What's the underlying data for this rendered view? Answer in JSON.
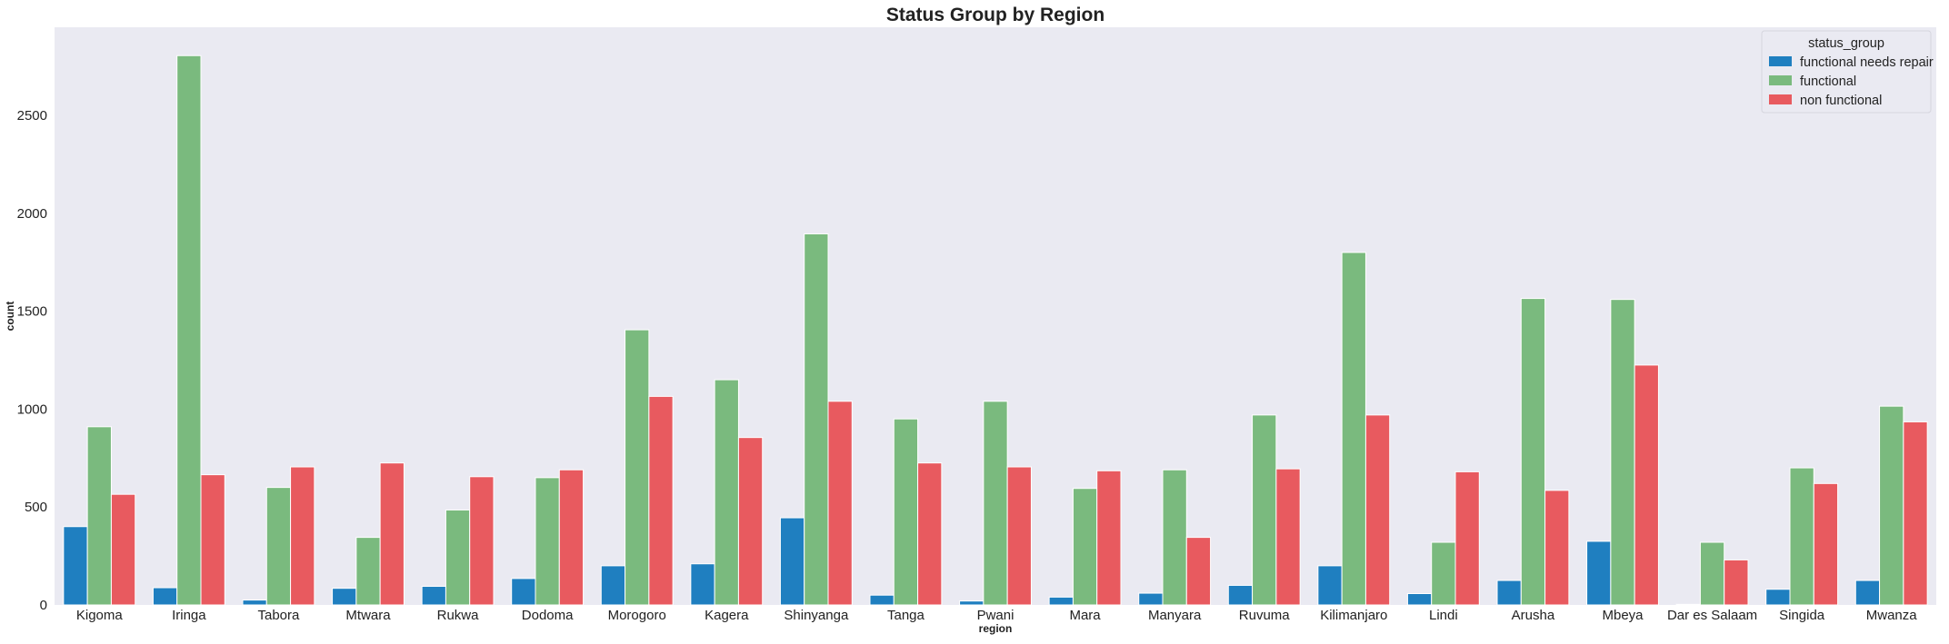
{
  "chart_data": {
    "type": "bar",
    "title": "Status Group by Region",
    "xlabel": "region",
    "ylabel": "count",
    "ylim": [
      0,
      2950
    ],
    "yticks": [
      0,
      500,
      1000,
      1500,
      2000,
      2500
    ],
    "grid": false,
    "legend": {
      "title": "status_group",
      "placement": "top-right"
    },
    "categories": [
      "Kigoma",
      "Iringa",
      "Tabora",
      "Mtwara",
      "Rukwa",
      "Dodoma",
      "Morogoro",
      "Kagera",
      "Shinyanga",
      "Tanga",
      "Pwani",
      "Mara",
      "Manyara",
      "Ruvuma",
      "Kilimanjaro",
      "Lindi",
      "Arusha",
      "Mbeya",
      "Dar es Salaam",
      "Singida",
      "Mwanza"
    ],
    "series": [
      {
        "name": "functional needs repair",
        "color": "#1f7fc0",
        "values": [
          400,
          88,
          25,
          85,
          95,
          135,
          200,
          210,
          445,
          50,
          20,
          40,
          60,
          100,
          200,
          58,
          125,
          325,
          3,
          80,
          125
        ]
      },
      {
        "name": "functional",
        "color": "#7aba7e",
        "values": [
          910,
          2805,
          600,
          345,
          485,
          650,
          1405,
          1150,
          1895,
          950,
          1040,
          595,
          690,
          970,
          1800,
          320,
          1565,
          1560,
          320,
          700,
          1015
        ]
      },
      {
        "name": "non functional",
        "color": "#e85a5f",
        "values": [
          565,
          665,
          705,
          725,
          655,
          690,
          1065,
          855,
          1040,
          725,
          705,
          685,
          345,
          695,
          970,
          680,
          585,
          1225,
          230,
          620,
          935
        ]
      }
    ]
  }
}
